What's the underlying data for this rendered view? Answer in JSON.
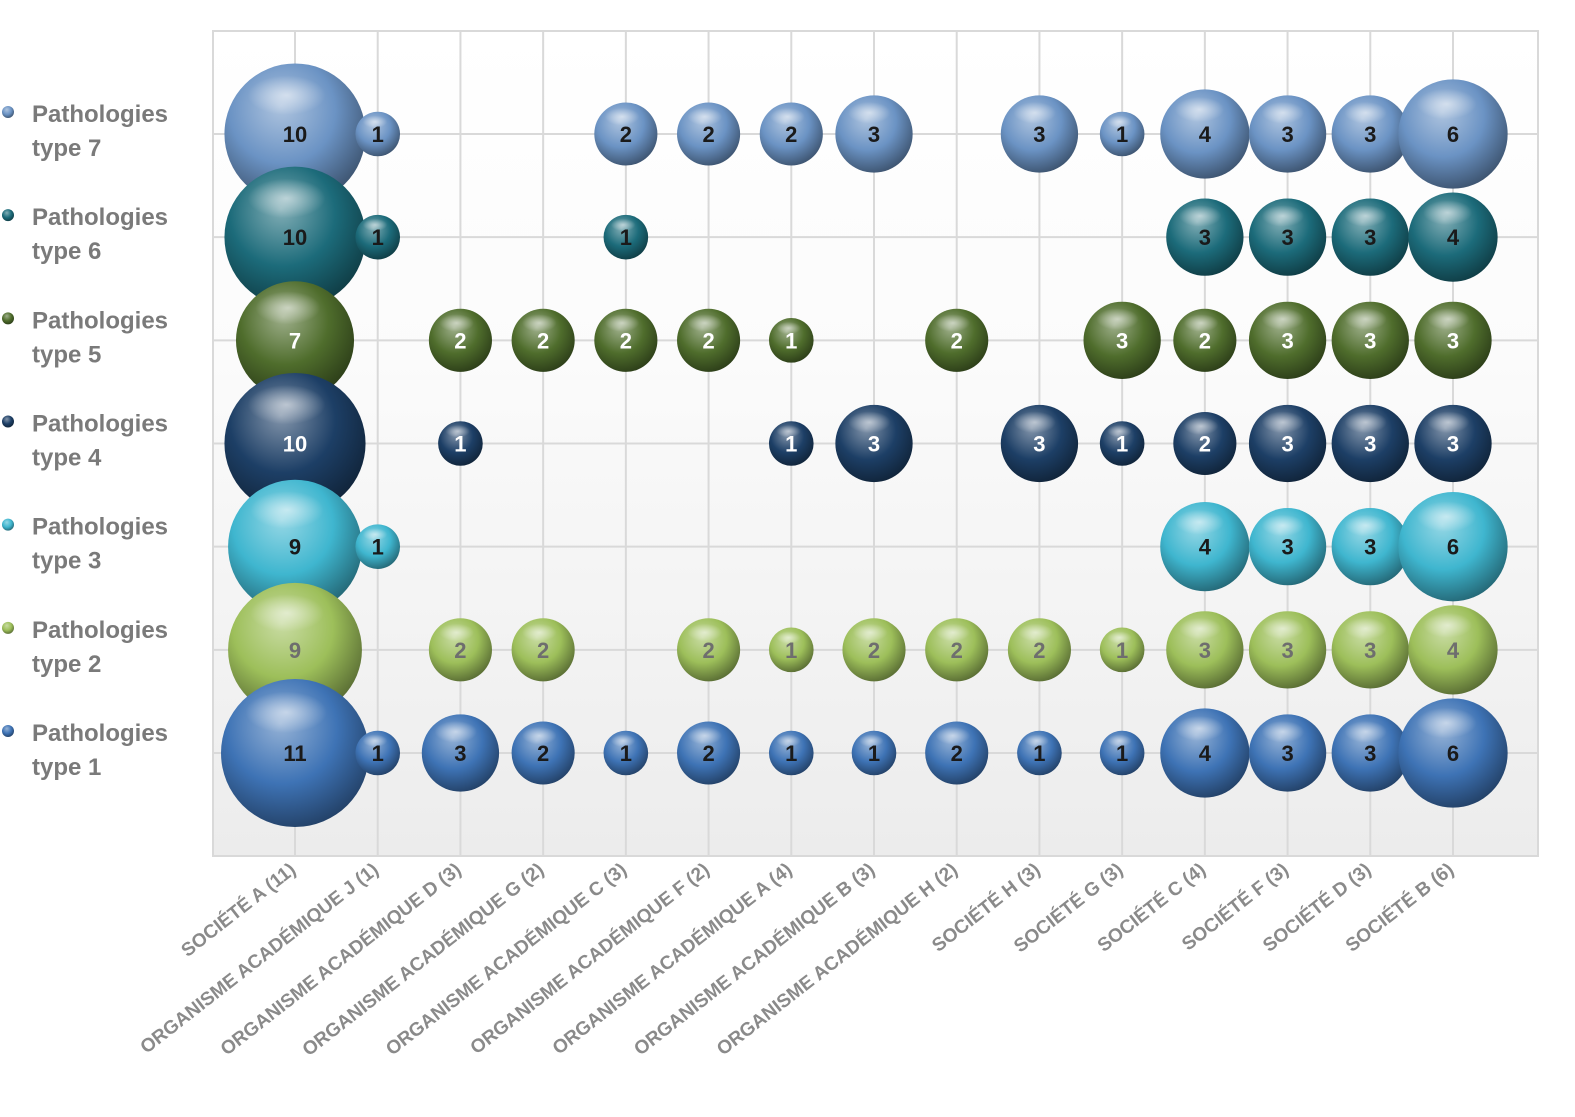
{
  "chart_data": {
    "type": "bubble",
    "title": "",
    "categories": [
      "SOCIÉTÉ A (11)",
      "ORGANISME ACADÉMIQUE J (1)",
      "ORGANISME ACADÉMIQUE D (3)",
      "ORGANISME ACADÉMIQUE G (2)",
      "ORGANISME ACADÉMIQUE C (3)",
      "ORGANISME ACADÉMIQUE F (2)",
      "ORGANISME ACADÉMIQUE A (4)",
      "ORGANISME ACADÉMIQUE B (3)",
      "ORGANISME ACADÉMIQUE H (2)",
      "SOCIÉTÉ H (3)",
      "SOCIÉTÉ G (3)",
      "SOCIÉTÉ C (4)",
      "SOCIÉTÉ F (3)",
      "SOCIÉTÉ D (3)",
      "SOCIÉTÉ B (6)"
    ],
    "grid": true,
    "legend_position": "left",
    "series": [
      {
        "name": "Pathologies type 7",
        "color": "#6b93c4",
        "label_color": "#1a1a1a",
        "values": [
          10,
          1,
          null,
          null,
          2,
          2,
          2,
          3,
          null,
          3,
          1,
          4,
          3,
          3,
          6
        ]
      },
      {
        "name": "Pathologies type 6",
        "color": "#1c6b7a",
        "label_color": "#1a1a1a",
        "values": [
          10,
          1,
          null,
          null,
          1,
          null,
          null,
          null,
          null,
          null,
          null,
          3,
          3,
          3,
          4
        ]
      },
      {
        "name": "Pathologies type 5",
        "color": "#4f6d2c",
        "label_color": "#ffffff",
        "values": [
          7,
          null,
          2,
          2,
          2,
          2,
          1,
          null,
          2,
          null,
          3,
          2,
          3,
          3,
          3
        ]
      },
      {
        "name": "Pathologies type 4",
        "color": "#1d3f66",
        "label_color": "#ffffff",
        "values": [
          10,
          null,
          1,
          null,
          null,
          null,
          1,
          3,
          null,
          3,
          1,
          2,
          3,
          3,
          3
        ]
      },
      {
        "name": "Pathologies type 3",
        "color": "#3fb6cf",
        "label_color": "#1a1a1a",
        "values": [
          9,
          1,
          null,
          null,
          null,
          null,
          null,
          null,
          null,
          null,
          null,
          4,
          3,
          3,
          6
        ]
      },
      {
        "name": "Pathologies type 2",
        "color": "#9dbf5a",
        "label_color": "#6e6e6e",
        "values": [
          9,
          null,
          2,
          2,
          null,
          2,
          1,
          2,
          2,
          2,
          1,
          3,
          3,
          3,
          4
        ]
      },
      {
        "name": "Pathologies type 1",
        "color": "#3e73b5",
        "label_color": "#1a1a1a",
        "values": [
          11,
          1,
          3,
          2,
          1,
          2,
          1,
          1,
          2,
          1,
          1,
          4,
          3,
          3,
          6
        ]
      }
    ]
  }
}
